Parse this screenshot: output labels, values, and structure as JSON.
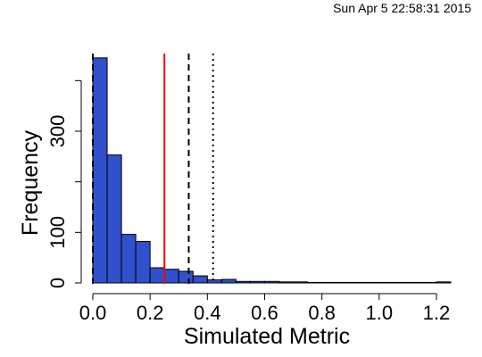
{
  "timestamp": "Sun Apr  5 22:58:31 2015",
  "chart_data": {
    "type": "bar",
    "subtype": "histogram",
    "xlabel": "Simulated Metric",
    "ylabel": "Frequency",
    "xlim": [
      0,
      1.25
    ],
    "ylim": [
      0,
      450
    ],
    "bin_width": 0.05,
    "bins": [
      {
        "x0": 0.0,
        "x1": 0.05,
        "count": 445
      },
      {
        "x0": 0.05,
        "x1": 0.1,
        "count": 253
      },
      {
        "x0": 0.1,
        "x1": 0.15,
        "count": 96
      },
      {
        "x0": 0.15,
        "x1": 0.2,
        "count": 82
      },
      {
        "x0": 0.2,
        "x1": 0.25,
        "count": 30
      },
      {
        "x0": 0.25,
        "x1": 0.3,
        "count": 27
      },
      {
        "x0": 0.3,
        "x1": 0.35,
        "count": 23
      },
      {
        "x0": 0.35,
        "x1": 0.4,
        "count": 14
      },
      {
        "x0": 0.4,
        "x1": 0.45,
        "count": 6
      },
      {
        "x0": 0.45,
        "x1": 0.5,
        "count": 7
      },
      {
        "x0": 0.5,
        "x1": 0.55,
        "count": 3
      },
      {
        "x0": 0.55,
        "x1": 0.6,
        "count": 3
      },
      {
        "x0": 0.6,
        "x1": 0.65,
        "count": 3
      },
      {
        "x0": 0.65,
        "x1": 0.7,
        "count": 2
      },
      {
        "x0": 0.7,
        "x1": 0.75,
        "count": 2
      },
      {
        "x0": 0.75,
        "x1": 0.8,
        "count": 1
      },
      {
        "x0": 0.8,
        "x1": 0.85,
        "count": 1
      },
      {
        "x0": 0.85,
        "x1": 0.9,
        "count": 1
      },
      {
        "x0": 0.9,
        "x1": 0.95,
        "count": 1
      },
      {
        "x0": 0.95,
        "x1": 1.0,
        "count": 1
      },
      {
        "x0": 1.0,
        "x1": 1.05,
        "count": 1
      },
      {
        "x0": 1.05,
        "x1": 1.1,
        "count": 1
      },
      {
        "x0": 1.1,
        "x1": 1.15,
        "count": 1
      },
      {
        "x0": 1.15,
        "x1": 1.2,
        "count": 1
      },
      {
        "x0": 1.2,
        "x1": 1.25,
        "count": 2
      }
    ],
    "x_ticks": [
      0.0,
      0.2,
      0.4,
      0.6,
      0.8,
      1.0,
      1.2
    ],
    "x_tick_labels": [
      "0.0",
      "0.2",
      "0.4",
      "0.6",
      "0.8",
      "1.0",
      "1.2"
    ],
    "y_ticks": [
      0,
      100,
      200,
      300,
      400
    ],
    "y_tick_labels": [
      "0",
      "100",
      "",
      "300",
      ""
    ],
    "reference_lines": [
      {
        "x": 0.0,
        "color": "#000000",
        "style": "dashed"
      },
      {
        "x": 0.25,
        "color": "#ff0000",
        "style": "solid"
      },
      {
        "x": 0.335,
        "color": "#000000",
        "style": "dashed"
      },
      {
        "x": 0.42,
        "color": "#000000",
        "style": "dotted"
      }
    ],
    "bar_color": "#3050cc",
    "bar_edge_color": "#000000",
    "grid": false,
    "legend": "none"
  }
}
